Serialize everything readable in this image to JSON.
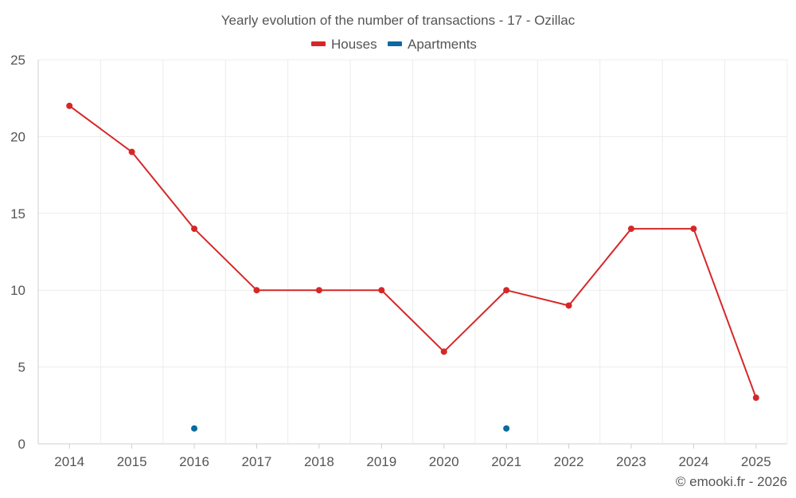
{
  "chart_data": {
    "type": "line",
    "title": "Yearly evolution of the number of transactions - 17 - Ozillac",
    "categories": [
      "2014",
      "2015",
      "2016",
      "2017",
      "2018",
      "2019",
      "2020",
      "2021",
      "2022",
      "2023",
      "2024",
      "2025"
    ],
    "ylim": [
      0,
      25
    ],
    "yticks": [
      0,
      5,
      10,
      15,
      20,
      25
    ],
    "grid": true,
    "legend_position": "top-center",
    "series": [
      {
        "name": "Houses",
        "color": "#d62728",
        "values": [
          22,
          19,
          14,
          10,
          10,
          10,
          6,
          10,
          9,
          14,
          14,
          3
        ]
      },
      {
        "name": "Apartments",
        "color": "#0b6aa2",
        "values": [
          null,
          null,
          1,
          null,
          null,
          null,
          null,
          1,
          null,
          null,
          null,
          null
        ]
      }
    ],
    "credit": "© emooki.fr - 2026"
  }
}
